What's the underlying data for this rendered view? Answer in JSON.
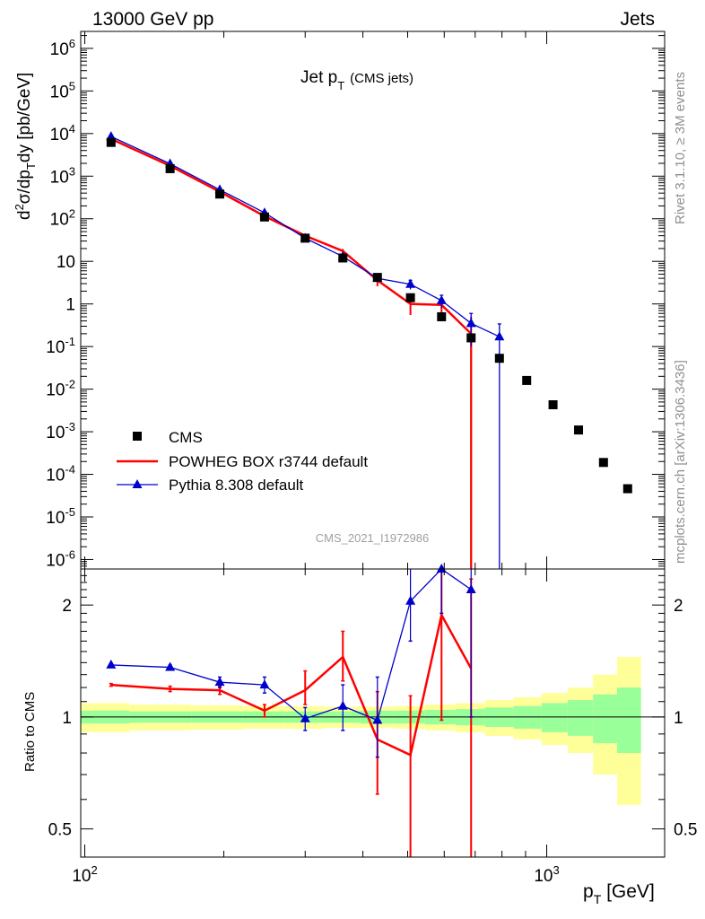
{
  "header": {
    "left": "13000 GeV pp",
    "right": "Jets"
  },
  "side_labels": {
    "top": "Rivet 3.1.10, ≥ 3M events",
    "bottom": "mcplots.cern.ch [arXiv:1306.3436]"
  },
  "watermark": "CMS_2021_I1972986",
  "main_title": "Jet p",
  "main_title_sub": "T",
  "main_title_suffix": "(CMS jets)",
  "colors": {
    "cms": "#000000",
    "powheg": "#ff0000",
    "pythia": "#0000cc",
    "band_inner": "#99ff99",
    "band_outer": "#ffff99"
  },
  "chart_data": [
    {
      "type": "scatter",
      "panel": "main",
      "ylabel": "d²σ/dp_T dy [pb/GeV]",
      "yscale": "log",
      "xscale": "log",
      "xlim": [
        98,
        1800
      ],
      "ylim": [
        6e-07,
        2500000.0
      ],
      "x_tick_labels": [
        "10^2",
        "10^3"
      ],
      "y_tick_labels": [
        "10^6",
        "10^5",
        "10^4",
        "10^3",
        "10^2",
        "10",
        "1",
        "10^-1",
        "10^-2",
        "10^-3",
        "10^-4",
        "10^-5",
        "10^-6"
      ],
      "legend": {
        "placement": "bottom-left",
        "entries": [
          "CMS",
          "POWHEG BOX r3744 default",
          "Pythia 8.308 default"
        ]
      },
      "series": [
        {
          "name": "CMS",
          "marker": "square",
          "x": [
            114,
            153,
            196,
            245,
            300,
            362,
            430,
            507,
            592,
            686,
            790,
            905,
            1032,
            1172,
            1327,
            1497
          ],
          "y": [
            6200,
            1500,
            380,
            110,
            35,
            12,
            4.2,
            1.4,
            0.5,
            0.16,
            0.053,
            0.016,
            0.0043,
            0.0011,
            0.00019,
            4.6e-05
          ]
        },
        {
          "name": "POWHEG BOX r3744 default",
          "marker": "line",
          "x": [
            114,
            153,
            196,
            245,
            300,
            362,
            430,
            507,
            592,
            686
          ],
          "y": [
            7500,
            1750,
            430,
            115,
            40,
            17.5,
            3.6,
            1.0,
            0.95,
            0.2
          ],
          "err": [
            0,
            0,
            0,
            0,
            0,
            2,
            1,
            0.45,
            0.35,
            0.3
          ]
        },
        {
          "name": "Pythia 8.308 default",
          "marker": "triangle",
          "x": [
            114,
            153,
            196,
            245,
            300,
            362,
            430,
            507,
            592,
            686,
            790
          ],
          "y": [
            8500,
            1950,
            480,
            138,
            35,
            13,
            4.0,
            2.9,
            1.2,
            0.35,
            0.17
          ],
          "err": [
            0,
            0,
            0,
            0,
            0,
            1.5,
            0.7,
            0.7,
            0.4,
            0.25,
            0.17
          ]
        }
      ]
    },
    {
      "type": "line",
      "panel": "ratio",
      "ylabel": "Ratio to CMS",
      "xlabel": "p_T [GeV]",
      "xscale": "log",
      "yscale": "log",
      "xlim": [
        98,
        1800
      ],
      "ylim": [
        0.42,
        2.5
      ],
      "y_tick_labels": [
        "0.5",
        "1",
        "2"
      ],
      "band_edges": [
        98,
        125,
        170,
        220,
        270,
        330,
        395,
        465,
        545,
        635,
        735,
        848,
        975,
        1110,
        1260,
        1420,
        1600
      ],
      "band_inner": [
        [
          0.96,
          1.04
        ],
        [
          0.965,
          1.035
        ],
        [
          0.965,
          1.035
        ],
        [
          0.965,
          1.035
        ],
        [
          0.965,
          1.035
        ],
        [
          0.965,
          1.035
        ],
        [
          0.96,
          1.04
        ],
        [
          0.96,
          1.04
        ],
        [
          0.955,
          1.045
        ],
        [
          0.95,
          1.05
        ],
        [
          0.94,
          1.06
        ],
        [
          0.93,
          1.07
        ],
        [
          0.91,
          1.09
        ],
        [
          0.89,
          1.11
        ],
        [
          0.85,
          1.15
        ],
        [
          0.8,
          1.2
        ]
      ],
      "band_outer": [
        [
          0.91,
          1.09
        ],
        [
          0.92,
          1.08
        ],
        [
          0.925,
          1.075
        ],
        [
          0.93,
          1.07
        ],
        [
          0.93,
          1.07
        ],
        [
          0.935,
          1.065
        ],
        [
          0.935,
          1.065
        ],
        [
          0.93,
          1.07
        ],
        [
          0.92,
          1.08
        ],
        [
          0.91,
          1.09
        ],
        [
          0.89,
          1.11
        ],
        [
          0.87,
          1.13
        ],
        [
          0.84,
          1.16
        ],
        [
          0.8,
          1.2
        ],
        [
          0.7,
          1.3
        ],
        [
          0.58,
          1.45
        ]
      ],
      "series": [
        {
          "name": "POWHEG BOX r3744 default",
          "x": [
            114,
            153,
            196,
            245,
            300,
            362,
            430,
            507,
            592,
            686
          ],
          "y": [
            1.22,
            1.19,
            1.18,
            1.04,
            1.18,
            1.45,
            0.87,
            0.79,
            1.88,
            1.35
          ],
          "err_lo": [
            0.01,
            0.02,
            0.03,
            0.04,
            0.1,
            0.2,
            0.25,
            0.5,
            0.9,
            1.0
          ],
          "err_hi": [
            0.01,
            0.02,
            0.03,
            0.04,
            0.15,
            0.25,
            0.3,
            0.35,
            0.7,
            1.0
          ]
        },
        {
          "name": "Pythia 8.308 default",
          "x": [
            114,
            153,
            196,
            245,
            300,
            362,
            430,
            507,
            592,
            686
          ],
          "y": [
            1.38,
            1.36,
            1.24,
            1.22,
            0.99,
            1.07,
            0.98,
            2.05,
            2.5,
            2.2
          ],
          "err_lo": [
            0.01,
            0.02,
            0.04,
            0.06,
            0.07,
            0.15,
            0.2,
            0.45,
            0.6,
            1.2
          ],
          "err_hi": [
            0.01,
            0.02,
            0.04,
            0.06,
            0.07,
            0.15,
            0.3,
            0.5,
            0.3,
            0.3
          ]
        }
      ]
    }
  ]
}
